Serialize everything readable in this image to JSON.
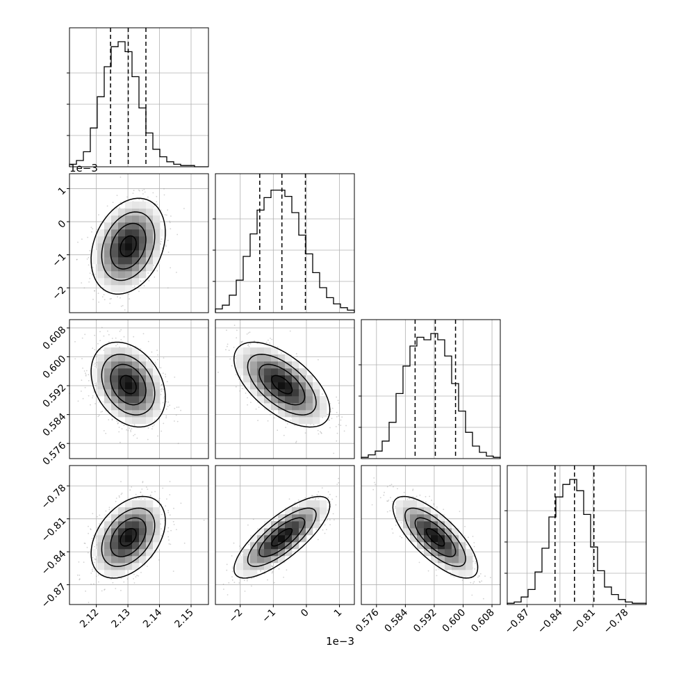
{
  "chart_data": {
    "type": "corner",
    "n_params": 4,
    "parameters": [
      {
        "range": [
          2.1115,
          2.1555
        ],
        "ticks": [
          2.12,
          2.13,
          2.14,
          2.15
        ],
        "tick_labels": [
          "2.12",
          "2.13",
          "2.14",
          "2.15"
        ],
        "offset_label": "",
        "quantiles": [
          2.1245,
          2.1301,
          2.1357
        ],
        "hist": [
          0.02,
          0.05,
          0.12,
          0.31,
          0.56,
          0.8,
          0.96,
          1.0,
          0.92,
          0.72,
          0.47,
          0.27,
          0.14,
          0.08,
          0.04,
          0.02,
          0.01,
          0.01,
          0.0,
          0.0
        ]
      },
      {
        "range": [
          -2.75,
          1.45
        ],
        "ticks": [
          -2,
          -1,
          0,
          1
        ],
        "tick_labels": [
          "−2",
          "−1",
          "0",
          "1"
        ],
        "offset_label": "1e−3",
        "quantiles": [
          -1.41,
          -0.74,
          -0.03
        ],
        "hist": [
          0.03,
          0.06,
          0.14,
          0.26,
          0.45,
          0.63,
          0.82,
          0.92,
          0.98,
          0.98,
          0.93,
          0.8,
          0.62,
          0.47,
          0.32,
          0.2,
          0.12,
          0.07,
          0.04,
          0.02
        ]
      },
      {
        "range": [
          0.5718,
          0.6103
        ],
        "ticks": [
          0.576,
          0.584,
          0.592,
          0.6,
          0.608
        ],
        "tick_labels": [
          "0.576",
          "0.584",
          "0.592",
          "0.600",
          "0.608"
        ],
        "offset_label": "",
        "quantiles": [
          0.5867,
          0.5923,
          0.5979
        ],
        "hist": [
          0.01,
          0.03,
          0.06,
          0.14,
          0.29,
          0.52,
          0.74,
          0.9,
          0.97,
          0.95,
          1.0,
          0.95,
          0.82,
          0.6,
          0.38,
          0.21,
          0.1,
          0.05,
          0.02,
          0.01
        ]
      },
      {
        "range": [
          -0.888,
          -0.7615
        ],
        "ticks": [
          -0.87,
          -0.84,
          -0.81,
          -0.78
        ],
        "tick_labels": [
          "−0.87",
          "−0.84",
          "−0.81",
          "−0.78"
        ],
        "offset_label": "",
        "quantiles": [
          -0.8445,
          -0.8268,
          -0.8091
        ],
        "hist": [
          0.01,
          0.02,
          0.06,
          0.12,
          0.26,
          0.45,
          0.7,
          0.86,
          0.96,
          1.0,
          0.91,
          0.72,
          0.46,
          0.27,
          0.14,
          0.08,
          0.04,
          0.02,
          0.01,
          0.01
        ]
      }
    ],
    "correlations": [
      {
        "row": 1,
        "col": 0,
        "rho": 0.28
      },
      {
        "row": 2,
        "col": 0,
        "rho": -0.3
      },
      {
        "row": 2,
        "col": 1,
        "rho": -0.6
      },
      {
        "row": 3,
        "col": 0,
        "rho": 0.4
      },
      {
        "row": 3,
        "col": 1,
        "rho": 0.78
      },
      {
        "row": 3,
        "col": 2,
        "rho": -0.74
      }
    ]
  },
  "labels": {
    "y_offset_row1": "1e−3",
    "x_offset_col1": "1e−3"
  }
}
